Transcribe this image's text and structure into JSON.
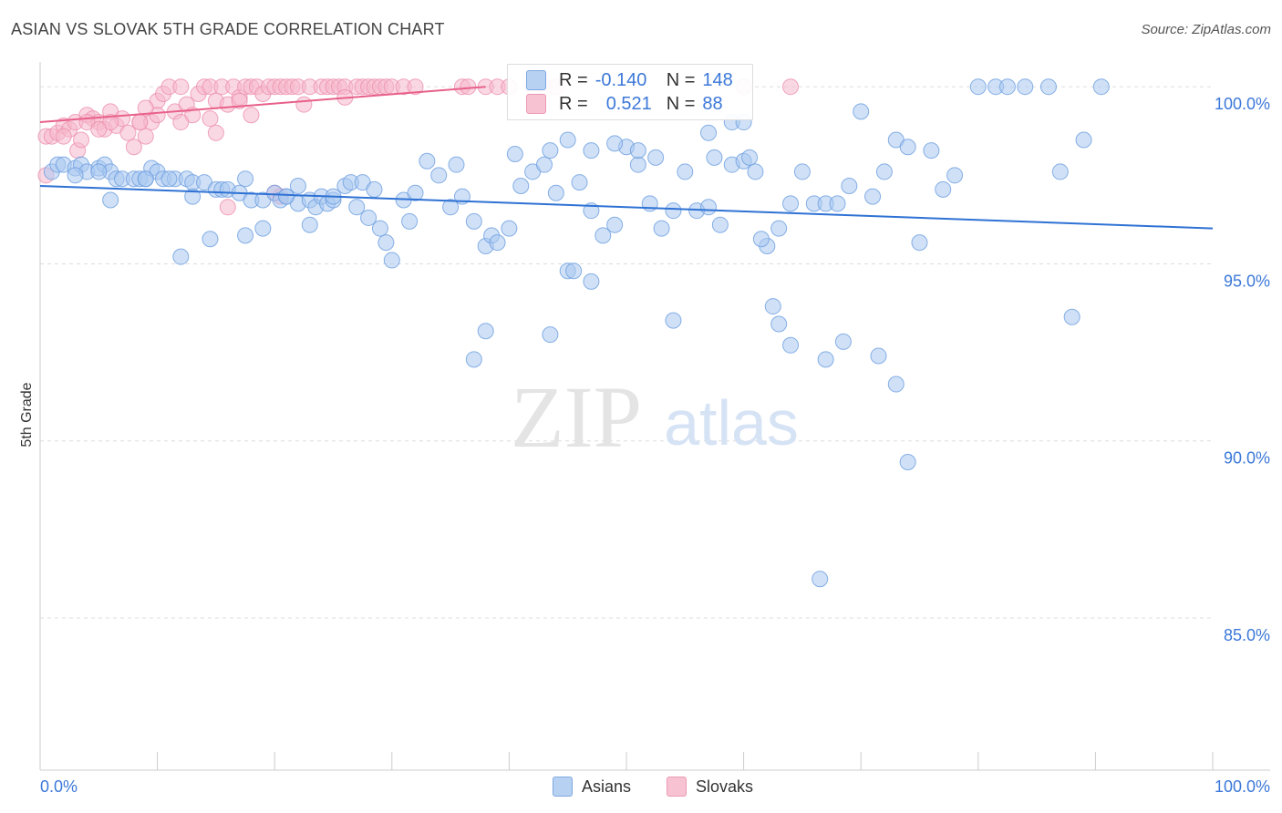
{
  "title": "ASIAN VS SLOVAK 5TH GRADE CORRELATION CHART",
  "source": "Source: ZipAtlas.com",
  "watermark": {
    "zip": "ZIP",
    "atlas": "atlas"
  },
  "legend": {
    "r_label": "R =",
    "n_label": "N =",
    "asians": {
      "r": "-0.140",
      "n": "148"
    },
    "slovaks": {
      "r": "0.521",
      "n": "88"
    }
  },
  "colors": {
    "asians_fill": "#a9c8f0",
    "asians_stroke": "#6b9de0",
    "asians_line": "#2f72d4",
    "slovaks_fill": "#f6b8cc",
    "slovaks_stroke": "#ec8fae",
    "slovaks_line": "#e8608a",
    "tick_text": "#3c78d8",
    "grid": "#dddddd"
  },
  "chart_data": {
    "type": "scatter",
    "title": "ASIAN VS SLOVAK 5TH GRADE CORRELATION CHART",
    "xlabel": "",
    "ylabel": "5th Grade",
    "xlim": [
      0,
      100
    ],
    "ylim": [
      80.7,
      100.7
    ],
    "x_tick_labels": [
      "0.0%",
      "100.0%"
    ],
    "y_ticks": [
      85,
      90,
      95,
      100
    ],
    "y_tick_labels": [
      "85.0%",
      "90.0%",
      "95.0%",
      "100.0%"
    ],
    "series": [
      {
        "name": "Asians",
        "trend": {
          "x": [
            0,
            100
          ],
          "y": [
            97.2,
            96.0
          ]
        },
        "points": [
          [
            1,
            97.6
          ],
          [
            1.5,
            97.8
          ],
          [
            2,
            97.8
          ],
          [
            3,
            97.7
          ],
          [
            3.5,
            97.8
          ],
          [
            4,
            97.6
          ],
          [
            5,
            97.7
          ],
          [
            5.5,
            97.8
          ],
          [
            6,
            97.6
          ],
          [
            6.5,
            97.4
          ],
          [
            7,
            97.4
          ],
          [
            8,
            97.4
          ],
          [
            8.5,
            97.4
          ],
          [
            9,
            97.4
          ],
          [
            9.5,
            97.7
          ],
          [
            10,
            97.6
          ],
          [
            10.5,
            97.4
          ],
          [
            11.5,
            97.4
          ],
          [
            12.5,
            97.4
          ],
          [
            13,
            97.3
          ],
          [
            14,
            97.3
          ],
          [
            15,
            97.1
          ],
          [
            15.5,
            97.1
          ],
          [
            16,
            97.1
          ],
          [
            17,
            97.0
          ],
          [
            17.5,
            97.4
          ],
          [
            18,
            96.8
          ],
          [
            19,
            96.8
          ],
          [
            20,
            97.0
          ],
          [
            20.5,
            96.8
          ],
          [
            21,
            96.9
          ],
          [
            22,
            96.7
          ],
          [
            23,
            96.8
          ],
          [
            23.5,
            96.6
          ],
          [
            24,
            96.9
          ],
          [
            24.5,
            96.7
          ],
          [
            25,
            96.8
          ],
          [
            26,
            97.2
          ],
          [
            26.5,
            97.3
          ],
          [
            27,
            96.6
          ],
          [
            27.5,
            97.3
          ],
          [
            28,
            96.3
          ],
          [
            28.5,
            97.1
          ],
          [
            29,
            96.0
          ],
          [
            29.5,
            95.6
          ],
          [
            30,
            95.1
          ],
          [
            31,
            96.8
          ],
          [
            32,
            97.0
          ],
          [
            31.5,
            96.2
          ],
          [
            33,
            97.9
          ],
          [
            34,
            97.5
          ],
          [
            35,
            96.6
          ],
          [
            35.5,
            97.8
          ],
          [
            36,
            96.9
          ],
          [
            37,
            96.2
          ],
          [
            38,
            95.5
          ],
          [
            38.5,
            95.8
          ],
          [
            39,
            95.6
          ],
          [
            40,
            96.0
          ],
          [
            40.5,
            98.1
          ],
          [
            41,
            97.2
          ],
          [
            42,
            97.6
          ],
          [
            43,
            97.8
          ],
          [
            43.5,
            98.2
          ],
          [
            44,
            97.0
          ],
          [
            45,
            98.5
          ],
          [
            46,
            97.3
          ],
          [
            47,
            96.5
          ],
          [
            48,
            95.8
          ],
          [
            49,
            96.1
          ],
          [
            50,
            98.3
          ],
          [
            51,
            97.8
          ],
          [
            52,
            96.7
          ],
          [
            53,
            96.0
          ],
          [
            54,
            96.5
          ],
          [
            55,
            97.6
          ],
          [
            56,
            96.5
          ],
          [
            57,
            96.6
          ],
          [
            58,
            96.1
          ],
          [
            59,
            97.8
          ],
          [
            60,
            97.9
          ],
          [
            60.5,
            98.0
          ],
          [
            61,
            97.6
          ],
          [
            62,
            95.5
          ],
          [
            63,
            96.0
          ],
          [
            64,
            96.7
          ],
          [
            65,
            97.6
          ],
          [
            66,
            96.7
          ],
          [
            67,
            96.7
          ],
          [
            68,
            96.7
          ],
          [
            69,
            97.2
          ],
          [
            70,
            99.3
          ],
          [
            71,
            96.9
          ],
          [
            72,
            97.6
          ],
          [
            73,
            98.5
          ],
          [
            74,
            98.3
          ],
          [
            75,
            95.6
          ],
          [
            76,
            98.2
          ],
          [
            77,
            97.1
          ],
          [
            78,
            97.5
          ],
          [
            80,
            100
          ],
          [
            81.5,
            100
          ],
          [
            82.5,
            100
          ],
          [
            84,
            100
          ],
          [
            86,
            100
          ],
          [
            87,
            97.6
          ],
          [
            89,
            98.5
          ],
          [
            90.5,
            100
          ],
          [
            38,
            93.1
          ],
          [
            37,
            92.3
          ],
          [
            43.5,
            93.0
          ],
          [
            45,
            94.8
          ],
          [
            45.5,
            94.8
          ],
          [
            47,
            94.5
          ],
          [
            47,
            98.2
          ],
          [
            49,
            98.4
          ],
          [
            51,
            98.2
          ],
          [
            52.5,
            98.0
          ],
          [
            54,
            93.4
          ],
          [
            57,
            98.7
          ],
          [
            57.5,
            98.0
          ],
          [
            59,
            99.0
          ],
          [
            60,
            99.0
          ],
          [
            61.5,
            95.7
          ],
          [
            62.5,
            93.8
          ],
          [
            63,
            93.3
          ],
          [
            64,
            92.7
          ],
          [
            66.5,
            86.1
          ],
          [
            67,
            92.3
          ],
          [
            68.5,
            92.8
          ],
          [
            71.5,
            92.4
          ],
          [
            73,
            91.6
          ],
          [
            74,
            89.4
          ],
          [
            88,
            93.5
          ],
          [
            12,
            95.2
          ],
          [
            14.5,
            95.7
          ],
          [
            17.5,
            95.8
          ],
          [
            19,
            96.0
          ],
          [
            21,
            96.9
          ],
          [
            23,
            96.1
          ],
          [
            3,
            97.5
          ],
          [
            5,
            97.6
          ],
          [
            9,
            97.4
          ],
          [
            11,
            97.4
          ],
          [
            13,
            96.9
          ],
          [
            6,
            96.8
          ],
          [
            22,
            97.2
          ],
          [
            25,
            96.9
          ]
        ]
      },
      {
        "name": "Slovaks",
        "trend": {
          "x": [
            0,
            38
          ],
          "y": [
            99.0,
            100.0
          ]
        },
        "points": [
          [
            0.5,
            97.5
          ],
          [
            0.5,
            98.6
          ],
          [
            1,
            98.6
          ],
          [
            1.5,
            98.7
          ],
          [
            2,
            98.9
          ],
          [
            2.5,
            98.8
          ],
          [
            3,
            99.0
          ],
          [
            3.2,
            98.2
          ],
          [
            3.5,
            98.5
          ],
          [
            4,
            99.2
          ],
          [
            4.5,
            99.1
          ],
          [
            5,
            99.0
          ],
          [
            5.5,
            98.8
          ],
          [
            6,
            99.3
          ],
          [
            6.5,
            98.9
          ],
          [
            7,
            99.1
          ],
          [
            7.5,
            98.7
          ],
          [
            8,
            98.3
          ],
          [
            8.5,
            99.0
          ],
          [
            9,
            98.6
          ],
          [
            9.5,
            99.0
          ],
          [
            10,
            99.6
          ],
          [
            10.5,
            99.8
          ],
          [
            11,
            100
          ],
          [
            11.5,
            99.3
          ],
          [
            12,
            100
          ],
          [
            12.5,
            99.5
          ],
          [
            13,
            99.2
          ],
          [
            13.5,
            99.8
          ],
          [
            14,
            100
          ],
          [
            14.5,
            100
          ],
          [
            15,
            99.6
          ],
          [
            15.5,
            100
          ],
          [
            16,
            99.5
          ],
          [
            16.5,
            100
          ],
          [
            17,
            99.7
          ],
          [
            17.5,
            100
          ],
          [
            18,
            100
          ],
          [
            18.5,
            100
          ],
          [
            19,
            99.8
          ],
          [
            19.5,
            100
          ],
          [
            20,
            100
          ],
          [
            20.5,
            100
          ],
          [
            21,
            100
          ],
          [
            21.5,
            100
          ],
          [
            22,
            100
          ],
          [
            22.5,
            99.5
          ],
          [
            23,
            100
          ],
          [
            24,
            100
          ],
          [
            24.5,
            100
          ],
          [
            25,
            100
          ],
          [
            25.5,
            100
          ],
          [
            26,
            100
          ],
          [
            27,
            100
          ],
          [
            27.5,
            100
          ],
          [
            28,
            100
          ],
          [
            28.5,
            100
          ],
          [
            29,
            100
          ],
          [
            29.5,
            100
          ],
          [
            30,
            100
          ],
          [
            31,
            100
          ],
          [
            32,
            100
          ],
          [
            36,
            100
          ],
          [
            36.5,
            100
          ],
          [
            38,
            100
          ],
          [
            39,
            100
          ],
          [
            40,
            100
          ],
          [
            42,
            100
          ],
          [
            43,
            100
          ],
          [
            44,
            100
          ],
          [
            60,
            100
          ],
          [
            64,
            100
          ],
          [
            14.5,
            99.1
          ],
          [
            15,
            98.7
          ],
          [
            16,
            96.6
          ],
          [
            20,
            97.0
          ],
          [
            20.5,
            96.9
          ],
          [
            26,
            99.7
          ],
          [
            10,
            99.2
          ],
          [
            8.5,
            99.0
          ],
          [
            12,
            99.0
          ],
          [
            6,
            99.0
          ],
          [
            2,
            98.6
          ],
          [
            4,
            99.0
          ],
          [
            5,
            98.8
          ],
          [
            17,
            99.6
          ],
          [
            18,
            99.2
          ],
          [
            9,
            99.4
          ]
        ]
      }
    ]
  }
}
